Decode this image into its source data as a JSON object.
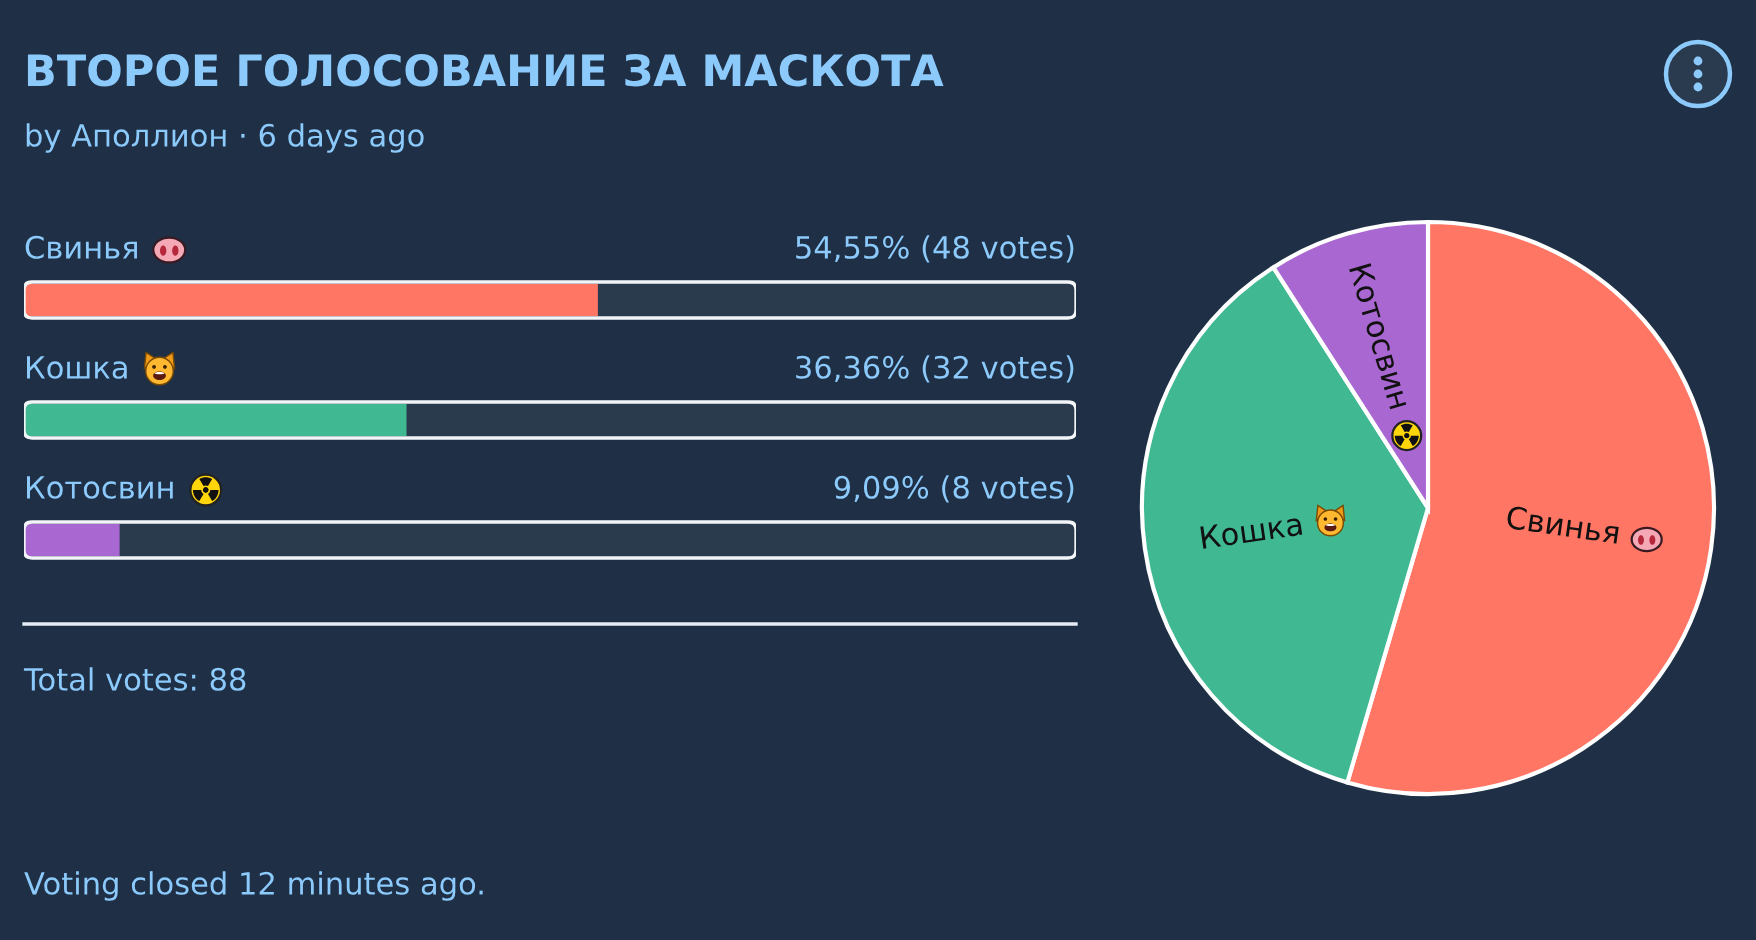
{
  "chart_data": [
    {
      "type": "bar",
      "orientation": "horizontal",
      "title": "ВТОРОЕ ГОЛОСОВАНИЕ ЗА МАСКОТА",
      "subtitle": "by Аполлион · 6 days ago",
      "categories": [
        "Свинья",
        "Кошка",
        "Котосвин"
      ],
      "values": [
        54.55,
        36.36,
        9.09
      ],
      "colors": [
        "#ff7664",
        "#40b992",
        "#a967d1"
      ],
      "value_labels": [
        "54,55% (48 votes)",
        "36,36% (32 votes)",
        "9,09% (8 votes)"
      ],
      "xlim": [
        0,
        100
      ],
      "tick_labels": false,
      "annotations": [
        "Total votes: 88",
        "Voting closed 12 minutes ago."
      ]
    },
    {
      "type": "pie",
      "categories": [
        "Свинья",
        "Кошка",
        "Котосвин"
      ],
      "values": [
        54.55,
        36.36,
        9.09
      ],
      "colors": [
        "#ff7664",
        "#40b992",
        "#a967d1"
      ]
    }
  ]
}
